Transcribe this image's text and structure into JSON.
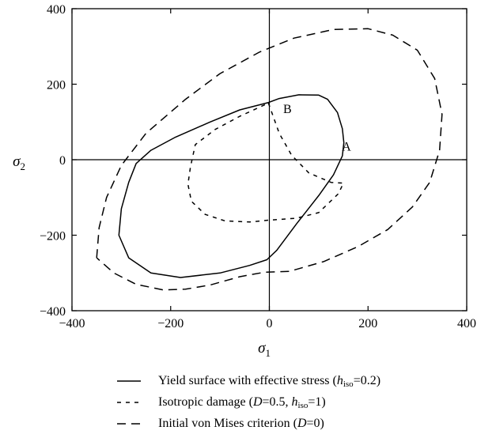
{
  "chart_data": {
    "type": "line",
    "xlabel": "σ",
    "xlabel_sub": "1",
    "ylabel": "σ",
    "ylabel_sub": "2",
    "xlim": [
      -400,
      400
    ],
    "ylim": [
      -400,
      400
    ],
    "xticks": [
      -400,
      -200,
      0,
      200,
      400
    ],
    "yticks": [
      -400,
      -200,
      0,
      200,
      400
    ],
    "xtick_labels": [
      "−400",
      "−200",
      "0",
      "200",
      "400"
    ],
    "ytick_labels": [
      "−400",
      "−200",
      "0",
      "200",
      "400"
    ],
    "grid": false,
    "zero_axes": true,
    "legend_placement": "below",
    "annotations": [
      {
        "text": "A",
        "x": 147,
        "y": 24
      },
      {
        "text": "B",
        "x": 28,
        "y": 124
      }
    ],
    "series": [
      {
        "style": "solid",
        "points": [
          [
            -3,
            151
          ],
          [
            20,
            162
          ],
          [
            60,
            172
          ],
          [
            100,
            171
          ],
          [
            118,
            160
          ],
          [
            138,
            125
          ],
          [
            148,
            82
          ],
          [
            151,
            45
          ],
          [
            148,
            10
          ],
          [
            130,
            -40
          ],
          [
            100,
            -95
          ],
          [
            55,
            -170
          ],
          [
            15,
            -240
          ],
          [
            -5,
            -265
          ],
          [
            -40,
            -280
          ],
          [
            -100,
            -300
          ],
          [
            -180,
            -312
          ],
          [
            -240,
            -300
          ],
          [
            -285,
            -260
          ],
          [
            -305,
            -200
          ],
          [
            -300,
            -130
          ],
          [
            -285,
            -60
          ],
          [
            -270,
            -10
          ],
          [
            -240,
            25
          ],
          [
            -190,
            60
          ],
          [
            -120,
            100
          ],
          [
            -60,
            132
          ],
          [
            -3,
            151
          ]
        ]
      },
      {
        "style": "dashed",
        "points": [
          [
            -2,
            150
          ],
          [
            5,
            125
          ],
          [
            20,
            70
          ],
          [
            45,
            12
          ],
          [
            80,
            -35
          ],
          [
            125,
            -60
          ],
          [
            150,
            -62
          ],
          [
            140,
            -90
          ],
          [
            100,
            -140
          ],
          [
            55,
            -155
          ],
          [
            0,
            -160
          ],
          [
            -40,
            -165
          ],
          [
            -90,
            -162
          ],
          [
            -130,
            -145
          ],
          [
            -158,
            -110
          ],
          [
            -165,
            -65
          ],
          [
            -160,
            -20
          ],
          [
            -150,
            40
          ],
          [
            -110,
            80
          ],
          [
            -60,
            115
          ],
          [
            -2,
            150
          ]
        ]
      },
      {
        "style": "longdash",
        "points": [
          [
            -350,
            -260
          ],
          [
            -345,
            -180
          ],
          [
            -330,
            -100
          ],
          [
            -300,
            -15
          ],
          [
            -250,
            70
          ],
          [
            -170,
            160
          ],
          [
            -100,
            228
          ],
          [
            -20,
            285
          ],
          [
            50,
            322
          ],
          [
            130,
            345
          ],
          [
            200,
            347
          ],
          [
            250,
            330
          ],
          [
            300,
            290
          ],
          [
            335,
            215
          ],
          [
            350,
            120
          ],
          [
            345,
            25
          ],
          [
            325,
            -60
          ],
          [
            290,
            -125
          ],
          [
            240,
            -185
          ],
          [
            180,
            -230
          ],
          [
            110,
            -270
          ],
          [
            40,
            -296
          ],
          [
            -10,
            -298
          ],
          [
            -60,
            -310
          ],
          [
            -120,
            -332
          ],
          [
            -170,
            -343
          ],
          [
            -215,
            -345
          ],
          [
            -270,
            -330
          ],
          [
            -315,
            -300
          ],
          [
            -350,
            -260
          ]
        ]
      }
    ]
  },
  "legend": [
    {
      "style": "solid",
      "text_before": "Yield surface with effective stress (",
      "sym": "h",
      "sub": "iso",
      "text_after": "=0.2)"
    },
    {
      "style": "dashed",
      "text_before": "Isotropic damage (",
      "sym": "D",
      "mid": "=0.5, ",
      "sym2": "h",
      "sub": "iso",
      "text_after": "=1)"
    },
    {
      "style": "longdash",
      "text_before": "Initial von Mises criterion  (",
      "sym": "D",
      "text_after": "=0)"
    }
  ]
}
